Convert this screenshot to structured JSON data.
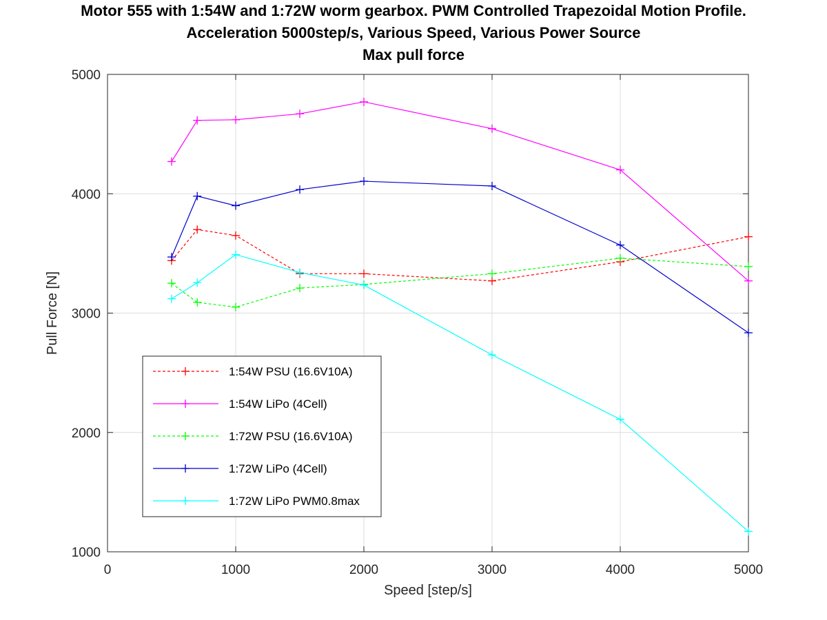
{
  "chart_data": {
    "type": "line",
    "title": [
      "Motor 555 with 1:54W and 1:72W worm gearbox. PWM Controlled Trapezoidal Motion Profile.",
      "Acceleration 5000step/s, Various Speed, Various Power Source",
      "Max pull force"
    ],
    "xlabel": "Speed [step/s]",
    "ylabel": "Pull Force [N]",
    "xlim": [
      0,
      5000
    ],
    "ylim": [
      1000,
      5000
    ],
    "xticks": [
      0,
      1000,
      2000,
      3000,
      4000,
      5000
    ],
    "yticks": [
      1000,
      2000,
      3000,
      4000,
      5000
    ],
    "x": [
      500,
      700,
      1000,
      1500,
      2000,
      3000,
      4000,
      5000
    ],
    "grid": true,
    "legend_position": "lower-left",
    "series": [
      {
        "name": "1:54W PSU (16.6V10A)",
        "color": "#ff0000",
        "dash": true,
        "values": [
          3440,
          3700,
          3650,
          3330,
          3330,
          3270,
          3430,
          3640
        ]
      },
      {
        "name": "1:54W LiPo (4Cell)",
        "color": "#ff00ff",
        "dash": false,
        "values": [
          4270,
          4615,
          4620,
          4670,
          4770,
          4545,
          4200,
          3270
        ]
      },
      {
        "name": "1:72W PSU (16.6V10A)",
        "color": "#00ff00",
        "dash": true,
        "values": [
          3250,
          3090,
          3050,
          3210,
          3240,
          3330,
          3460,
          3390
        ]
      },
      {
        "name": "1:72W LiPo (4Cell)",
        "color": "#0000cc",
        "dash": false,
        "values": [
          3470,
          3980,
          3900,
          4035,
          4105,
          4065,
          3570,
          2835
        ]
      },
      {
        "name": "1:72W LiPo PWM0.8max",
        "color": "#00ffff",
        "dash": false,
        "values": [
          3120,
          3255,
          3490,
          3340,
          3235,
          2650,
          2110,
          1170
        ]
      }
    ]
  }
}
